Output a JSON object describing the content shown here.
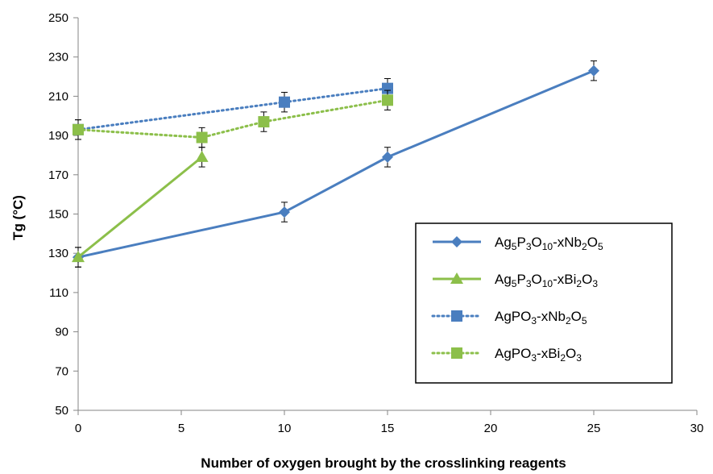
{
  "chart_data": {
    "type": "line",
    "xlabel": "Number of oxygen brought by the crosslinking reagents",
    "ylabel": "Tg (°C)",
    "xlim": [
      0,
      30
    ],
    "ylim": [
      50,
      250
    ],
    "x_ticks": [
      0,
      5,
      10,
      15,
      20,
      25,
      30
    ],
    "y_ticks": [
      50,
      70,
      90,
      110,
      130,
      150,
      170,
      190,
      210,
      230,
      250
    ],
    "grid": false,
    "legend_position": "bottom-right",
    "series": [
      {
        "legend": [
          {
            "t": "Ag"
          },
          {
            "t": "5",
            "sub": true
          },
          {
            "t": "P"
          },
          {
            "t": "3",
            "sub": true
          },
          {
            "t": "O"
          },
          {
            "t": "10",
            "sub": true
          },
          {
            "t": "-xNb"
          },
          {
            "t": "2",
            "sub": true
          },
          {
            "t": "O"
          },
          {
            "t": "5",
            "sub": true
          }
        ],
        "color": "#4a7ebf",
        "line": "solid",
        "marker": "diamond",
        "x": [
          0,
          10,
          15,
          25
        ],
        "y": [
          128,
          151,
          179,
          223
        ],
        "error": [
          5,
          5,
          5,
          5
        ]
      },
      {
        "legend": [
          {
            "t": "Ag"
          },
          {
            "t": "5",
            "sub": true
          },
          {
            "t": "P"
          },
          {
            "t": "3",
            "sub": true
          },
          {
            "t": "O"
          },
          {
            "t": "10",
            "sub": true
          },
          {
            "t": "-xBi"
          },
          {
            "t": "2",
            "sub": true
          },
          {
            "t": "O"
          },
          {
            "t": "3",
            "sub": true
          }
        ],
        "color": "#8cbf4a",
        "line": "solid",
        "marker": "triangle",
        "x": [
          0,
          6
        ],
        "y": [
          128,
          179
        ],
        "error": [
          5,
          5
        ]
      },
      {
        "legend": [
          {
            "t": "AgPO"
          },
          {
            "t": "3",
            "sub": true
          },
          {
            "t": "-xNb"
          },
          {
            "t": "2",
            "sub": true
          },
          {
            "t": "O"
          },
          {
            "t": "5",
            "sub": true
          }
        ],
        "color": "#4a7ebf",
        "line": "dotted",
        "marker": "square",
        "x": [
          0,
          10,
          15
        ],
        "y": [
          193,
          207,
          214
        ],
        "error": [
          5,
          5,
          5
        ]
      },
      {
        "legend": [
          {
            "t": "AgPO"
          },
          {
            "t": "3",
            "sub": true
          },
          {
            "t": "-xBi"
          },
          {
            "t": "2",
            "sub": true
          },
          {
            "t": "O"
          },
          {
            "t": "3",
            "sub": true
          }
        ],
        "color": "#8cbf4a",
        "line": "dotted",
        "marker": "square",
        "x": [
          0,
          6,
          9,
          15
        ],
        "y": [
          193,
          189,
          197,
          208
        ],
        "error": [
          5,
          5,
          5,
          5
        ]
      }
    ]
  }
}
